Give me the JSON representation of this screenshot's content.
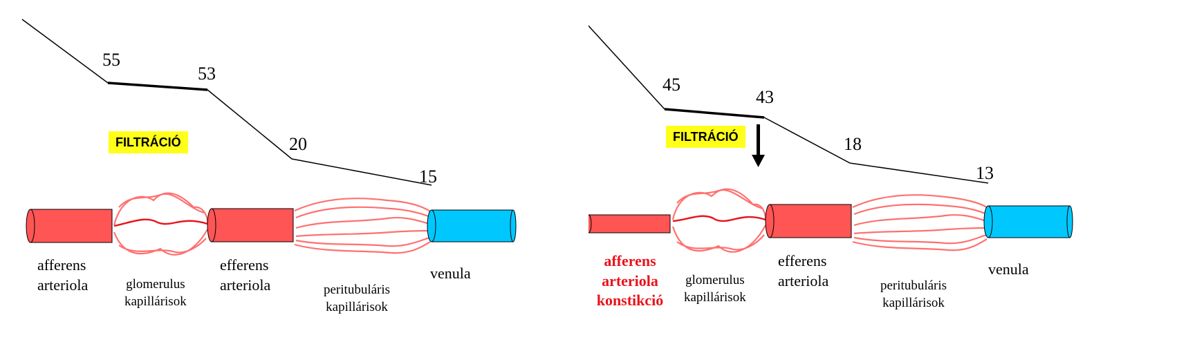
{
  "left": {
    "values": {
      "v1": "55",
      "v2": "53",
      "v3": "20",
      "v4": "15"
    },
    "badge": "FILTRÁCIÓ",
    "labels": {
      "afferens_1": "afferens",
      "afferens_2": "arteriola",
      "glomerulus_1": "glomerulus",
      "glomerulus_2": "kapillárisok",
      "efferens_1": "efferens",
      "efferens_2": "arteriola",
      "peri_1": "peritubuláris",
      "peri_2": "kapillárisok",
      "venula": "venula"
    }
  },
  "right": {
    "values": {
      "v1": "45",
      "v2": "43",
      "v3": "18",
      "v4": "13"
    },
    "badge": "FILTRÁCIÓ",
    "labels": {
      "afferens_1": "afferens",
      "afferens_2": "arteriola",
      "afferens_3": "konstikció",
      "glomerulus_1": "glomerulus",
      "glomerulus_2": "kapillárisok",
      "efferens_1": "efferens",
      "efferens_2": "arteriola",
      "peri_1": "peritubuláris",
      "peri_2": "kapillárisok",
      "venula": "venula"
    }
  },
  "colors": {
    "arteriole": "#ff5555",
    "capillary": "#ff7070",
    "venule": "#00c8ff",
    "badge": "#ffff1a",
    "highlight_text": "#e8141b"
  }
}
